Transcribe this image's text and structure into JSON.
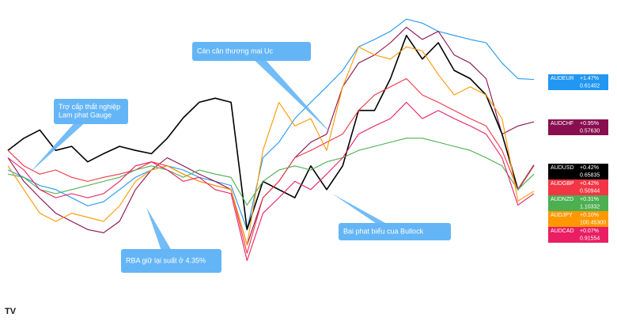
{
  "chart_data": {
    "type": "line",
    "ylim": [
      -0.9,
      2.25
    ],
    "series": [
      {
        "name": "AUDEUR",
        "color": "#2196f3",
        "change": "+1.47%",
        "price": "0.61402",
        "values": [
          0.36,
          0.27,
          0.17,
          0.12,
          0.02,
          -0.08,
          -0.03,
          0.12,
          0.27,
          0.36,
          0.41,
          0.36,
          0.27,
          0.22,
          0.17,
          -0.37,
          0.51,
          0.7,
          0.99,
          1.19,
          1.38,
          1.58,
          1.87,
          1.96,
          2.06,
          2.21,
          2.16,
          2.06,
          2.01,
          1.96,
          1.92,
          1.67,
          1.48,
          1.47
        ]
      },
      {
        "name": "AUDCHF",
        "color": "#880e4f",
        "change": "+0.95%",
        "price": "0.57630",
        "values": [
          0.51,
          0.22,
          0.02,
          -0.17,
          -0.27,
          -0.37,
          -0.41,
          -0.27,
          0.12,
          0.36,
          0.51,
          0.41,
          0.31,
          0.22,
          0.12,
          -0.56,
          0.02,
          0.22,
          0.51,
          0.7,
          0.8,
          1.38,
          1.67,
          1.77,
          1.92,
          2.11,
          1.96,
          2.06,
          1.77,
          1.67,
          1.48,
          0.8,
          0.9,
          0.95
        ]
      },
      {
        "name": "AUDUSD",
        "color": "#000000",
        "change": "+0.42%",
        "price": "0.65835",
        "values": [
          0.6,
          0.75,
          0.85,
          0.6,
          0.65,
          0.46,
          0.56,
          0.65,
          0.6,
          0.56,
          0.75,
          1.0,
          1.19,
          1.24,
          1.19,
          -0.37,
          0.22,
          0.12,
          0.02,
          0.41,
          0.12,
          0.41,
          1.09,
          1.09,
          1.48,
          2.01,
          1.72,
          1.92,
          1.58,
          1.48,
          1.28,
          0.8,
          0.12,
          0.42
        ]
      },
      {
        "name": "AUDGBP",
        "color": "#f23645",
        "change": "+0.42%",
        "price": "0.50944",
        "values": [
          0.6,
          0.41,
          0.31,
          0.36,
          0.27,
          0.22,
          0.27,
          0.31,
          0.36,
          0.46,
          0.41,
          0.31,
          0.22,
          0.17,
          0.12,
          -0.66,
          0.02,
          0.22,
          0.51,
          0.6,
          0.7,
          0.8,
          1.09,
          1.28,
          1.38,
          1.48,
          1.28,
          1.19,
          1.09,
          0.99,
          0.9,
          0.6,
          0.12,
          0.42
        ]
      },
      {
        "name": "AUDNZD",
        "color": "#4caf50",
        "change": "+0.31%",
        "price": "1.10332",
        "values": [
          0.31,
          0.27,
          0.12,
          0.07,
          0.12,
          0.17,
          0.22,
          0.27,
          0.36,
          0.41,
          0.36,
          0.27,
          0.36,
          0.31,
          0.27,
          -0.07,
          0.22,
          0.36,
          0.41,
          0.36,
          0.46,
          0.51,
          0.6,
          0.65,
          0.7,
          0.75,
          0.75,
          0.7,
          0.65,
          0.6,
          0.51,
          0.41,
          0.12,
          0.31
        ]
      },
      {
        "name": "AUDJPY",
        "color": "#ff9800",
        "change": "+0.10%",
        "price": "100.45300",
        "values": [
          0.41,
          0.12,
          -0.17,
          -0.27,
          -0.17,
          -0.22,
          -0.27,
          -0.08,
          0.22,
          0.36,
          0.41,
          0.31,
          0.22,
          0.17,
          0.12,
          -0.56,
          0.6,
          1.19,
          0.9,
          0.99,
          0.6,
          1.38,
          1.87,
          1.77,
          1.72,
          1.87,
          1.82,
          1.53,
          1.28,
          1.38,
          1.28,
          0.99,
          -0.02,
          0.1
        ]
      },
      {
        "name": "AUDCAD",
        "color": "#e91e63",
        "change": "+0.07%",
        "price": "0.91554",
        "values": [
          0.51,
          0.36,
          0.12,
          0.02,
          0.07,
          0.02,
          0.07,
          0.22,
          0.41,
          0.46,
          0.36,
          0.22,
          0.27,
          0.12,
          0.07,
          -0.75,
          -0.17,
          0.02,
          0.22,
          0.12,
          0.31,
          0.51,
          0.8,
          0.9,
          0.99,
          1.19,
          0.99,
          1.09,
          0.99,
          0.9,
          0.8,
          0.51,
          -0.07,
          0.07
        ]
      }
    ],
    "annotations": [
      {
        "lines": [
          "Cán cân thương mai Uc"
        ]
      },
      {
        "lines": [
          "Trợ cấp thất nghiệp",
          "Lam phat Gauge"
        ]
      },
      {
        "lines": [
          "RBA giữ lại suất ở 4.35%"
        ]
      },
      {
        "lines": [
          "Bai phat biểu cua Bullock"
        ]
      }
    ]
  }
}
